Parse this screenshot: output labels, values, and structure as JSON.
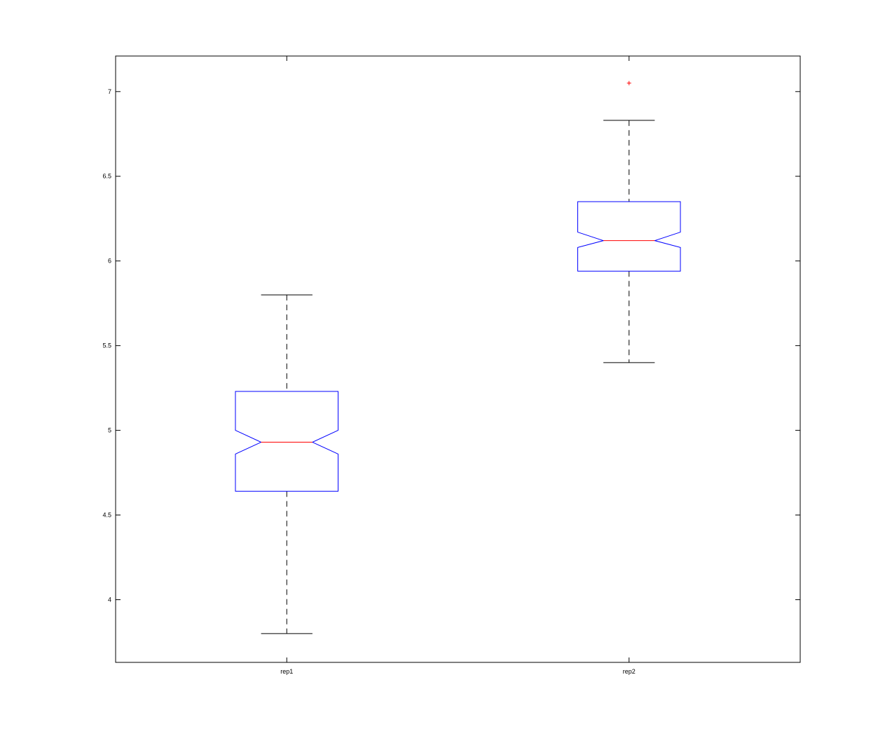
{
  "chart_data": {
    "type": "boxplot",
    "notched": true,
    "title": "",
    "xlabel": "",
    "ylabel": "",
    "categories": [
      "rep1",
      "rep2"
    ],
    "ylim": [
      3.63,
      7.21
    ],
    "yticks": [
      "4",
      "4.5",
      "5",
      "5.5",
      "6",
      "6.5",
      "7"
    ],
    "grid": false,
    "boxes": [
      {
        "category": "rep1",
        "whisker_low": 3.8,
        "q1": 4.64,
        "notch_low": 4.86,
        "median": 4.93,
        "notch_high": 5.0,
        "q3": 5.23,
        "whisker_high": 5.8,
        "outliers": []
      },
      {
        "category": "rep2",
        "whisker_low": 5.4,
        "q1": 5.94,
        "notch_low": 6.08,
        "median": 6.12,
        "notch_high": 6.17,
        "q3": 6.35,
        "whisker_high": 6.83,
        "outliers": [
          7.05
        ]
      }
    ],
    "colors": {
      "box": "#0000ff",
      "median": "#ff0000",
      "whisker": "#000000",
      "outlier": "#ff0000",
      "axes": "#000000"
    }
  }
}
